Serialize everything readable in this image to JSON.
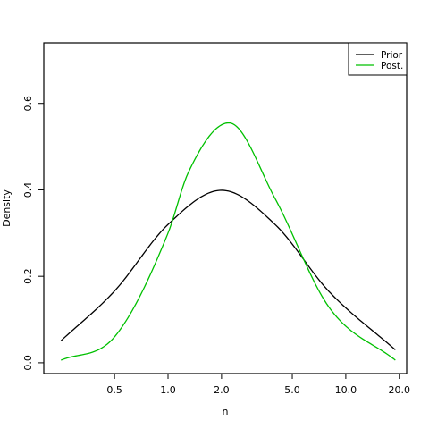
{
  "chart_data": {
    "type": "line",
    "title": "",
    "xlabel": "n",
    "ylabel": "Density",
    "x_scale": "log",
    "xlim": [
      0.2,
      22
    ],
    "ylim": [
      -0.025,
      0.74
    ],
    "x_ticks": [
      0.5,
      1.0,
      2.0,
      5.0,
      10.0,
      20.0
    ],
    "x_tick_labels": [
      "0.5",
      "1.0",
      "2.0",
      "5.0",
      "10.0",
      "20.0"
    ],
    "y_ticks": [
      0.0,
      0.2,
      0.4,
      0.6
    ],
    "y_tick_labels": [
      "0.0",
      "0.2",
      "0.4",
      "0.6"
    ],
    "grid": false,
    "legend": {
      "position": "top-right"
    },
    "series": [
      {
        "name": "Prior",
        "color": "#000000",
        "x": [
          0.25,
          0.5,
          1.0,
          2.0,
          4.0,
          8.0,
          19
        ],
        "y": [
          0.051,
          0.166,
          0.32,
          0.399,
          0.32,
          0.166,
          0.03
        ]
      },
      {
        "name": "Post.",
        "color": "#00c000",
        "x": [
          0.25,
          0.5,
          1.0,
          1.3,
          2.2,
          4.0,
          8.0,
          19
        ],
        "y": [
          0.006,
          0.06,
          0.3,
          0.44,
          0.555,
          0.38,
          0.13,
          0.006
        ]
      }
    ]
  }
}
